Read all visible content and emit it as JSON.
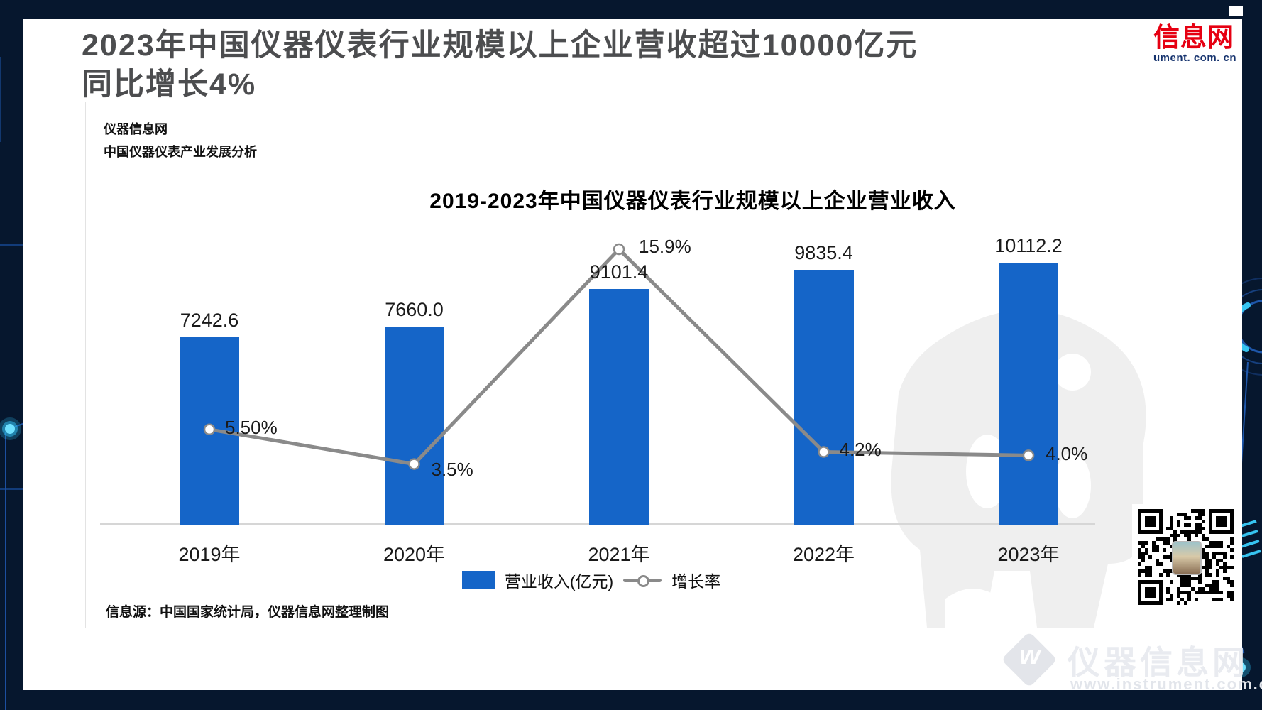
{
  "header": {
    "title_line1": "2023年中国仪器仪表行业规模以上企业营收超过10000亿元",
    "title_line2": "同比增长4%",
    "logo_cn": "信息网",
    "logo_domain": "ument. com. cn"
  },
  "panel": {
    "meta_line1": "仪器信息网",
    "meta_line2": "中国仪器仪表产业发展分析",
    "source": "信息源：中国国家统计局，仪器信息网整理制图"
  },
  "chart_data": {
    "type": "bar+line",
    "title": "2019-2023年中国仪器仪表行业规模以上企业营业收入",
    "categories": [
      "2019年",
      "2020年",
      "2021年",
      "2022年",
      "2023年"
    ],
    "series": [
      {
        "name": "营业收入(亿元)",
        "type": "bar",
        "values": [
          7242.6,
          7660.0,
          9101.4,
          9835.4,
          10112.2
        ]
      },
      {
        "name": "增长率",
        "type": "line",
        "values": [
          5.5,
          3.5,
          15.9,
          4.2,
          4.0
        ],
        "point_labels": [
          "5.50%",
          "3.5%",
          "15.9%",
          "4.2%",
          "4.0%"
        ]
      }
    ],
    "bar_labels": [
      "7242.6",
      "7660.0",
      "9101.4",
      "9835.4",
      "10112.2"
    ],
    "legend": [
      "营业收入(亿元)",
      "增长率"
    ],
    "legend_position": "bottom",
    "axes": {
      "y_left_min": 0,
      "y_left_unit": "亿元",
      "y_right_unit": "%",
      "gridlines": false
    },
    "colors": {
      "bar": "#1565c8",
      "line": "#8a8a8a",
      "marker_fill": "#ffffff"
    }
  },
  "branding": {
    "watermark_cn": "仪器信息网",
    "watermark_url": "www.instrument.com.cn",
    "accent_navy": "#06172e",
    "logo_red": "#e60012"
  }
}
